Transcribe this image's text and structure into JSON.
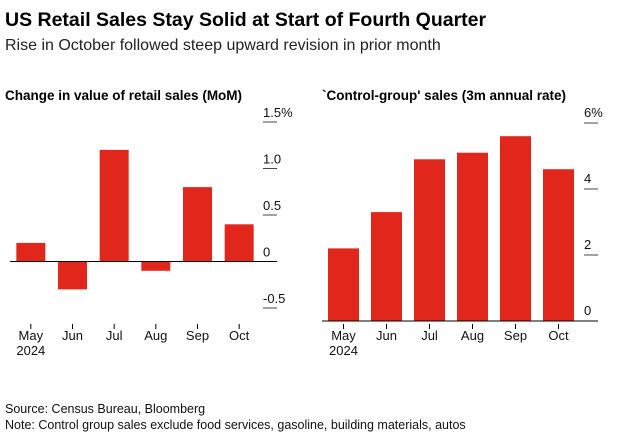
{
  "header": {
    "title": "US Retail Sales Stay Solid at Start of Fourth Quarter",
    "subtitle": "Rise in October followed steep upward revision in prior month"
  },
  "footer": {
    "source": "Source: Census Bureau, Bloomberg",
    "note": "Note: Control group sales exclude food services, gasoline, building materials, autos"
  },
  "colors": {
    "bar": "#e1261c",
    "axis": "#000000",
    "tick": "#444444"
  },
  "chart_data": [
    {
      "type": "bar",
      "title": "Change in value of retail sales (MoM)",
      "categories": [
        "May",
        "Jun",
        "Jul",
        "Aug",
        "Sep",
        "Oct"
      ],
      "year_label": "2024",
      "values": [
        0.2,
        -0.3,
        1.2,
        -0.1,
        0.8,
        0.4
      ],
      "ylim": [
        -0.5,
        1.5
      ],
      "yticks": [
        {
          "value": 1.5,
          "label": "1.5%"
        },
        {
          "value": 1.0,
          "label": "1.0"
        },
        {
          "value": 0.5,
          "label": "0.5"
        },
        {
          "value": 0,
          "label": "0"
        },
        {
          "value": -0.5,
          "label": "-0.5"
        }
      ],
      "grid": false,
      "y_axis_side": "right"
    },
    {
      "type": "bar",
      "title": "`Control-group' sales (3m annual rate)",
      "categories": [
        "May",
        "Jun",
        "Jul",
        "Aug",
        "Sep",
        "Oct"
      ],
      "year_label": "2024",
      "values": [
        2.2,
        3.3,
        4.9,
        5.1,
        5.6,
        4.6
      ],
      "ylim": [
        0,
        6
      ],
      "yticks": [
        {
          "value": 6,
          "label": "6%"
        },
        {
          "value": 4,
          "label": "4"
        },
        {
          "value": 2,
          "label": "2"
        },
        {
          "value": 0,
          "label": "0"
        }
      ],
      "grid": false,
      "y_axis_side": "right"
    }
  ]
}
